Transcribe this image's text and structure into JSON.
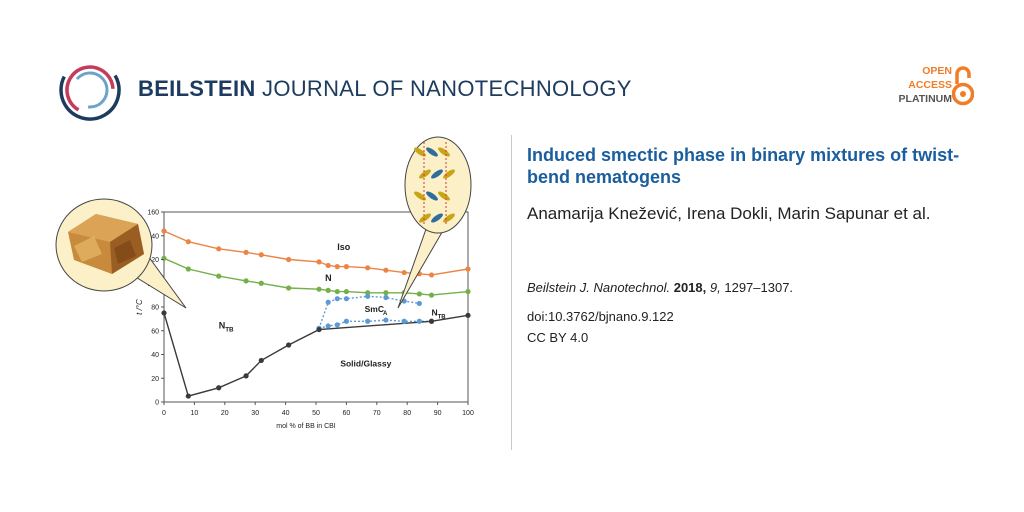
{
  "brand": {
    "bold": "BEILSTEIN",
    "light": "JOURNAL OF NANOTECHNOLOGY"
  },
  "open_access": {
    "line1": "OPEN",
    "line2": "ACCESS",
    "line3": "PLATINUM"
  },
  "article": {
    "title": "Induced smectic phase in binary mixtures of twist-bend nematogens",
    "authors": "Anamarija Knežević, Irena Dokli, Marin Sapunar et al.",
    "journal": "Beilstein J. Nanotechnol.",
    "year": "2018,",
    "volume": "9,",
    "pages": "1297–1307.",
    "doi": "doi:10.3762/bjnano.9.122",
    "license": "CC BY 4.0"
  },
  "colors": {
    "brand": "#1d3b5e",
    "title": "#1b5e9e",
    "accent": "#f07d27",
    "iso": "#ec8445",
    "n": "#74b04a",
    "smc": "#5b9bd5",
    "solid": "#3a3a3a"
  },
  "chart_data": {
    "type": "line",
    "xlabel": "mol % of BB in CBI",
    "ylabel": "t /°C",
    "xlim": [
      0,
      100
    ],
    "ylim": [
      0,
      160
    ],
    "xticks": [
      "0",
      "10",
      "20",
      "30",
      "40",
      "50",
      "60",
      "70",
      "80",
      "90",
      "100"
    ],
    "yticks": [
      "0",
      "20",
      "40",
      "60",
      "80",
      "100",
      "120",
      "140",
      "160"
    ],
    "series": [
      {
        "name": "Iso",
        "color": "#ec8445",
        "x": [
          0,
          8,
          18,
          27,
          32,
          41,
          51,
          54,
          57,
          60,
          67,
          73,
          79,
          84,
          88,
          100
        ],
        "y": [
          144,
          135,
          129,
          126,
          124,
          120,
          118,
          115,
          114,
          114,
          113,
          111,
          109,
          108,
          107,
          112
        ]
      },
      {
        "name": "N",
        "color": "#74b04a",
        "x": [
          0,
          8,
          18,
          27,
          32,
          41,
          51,
          54,
          57,
          60,
          67,
          73,
          79,
          84,
          88,
          100
        ],
        "y": [
          121,
          112,
          106,
          102,
          100,
          96,
          95,
          94,
          93,
          93,
          92,
          92,
          92,
          91,
          90,
          93
        ]
      },
      {
        "name": "SmCA",
        "color": "#5b9bd5",
        "x": [
          51,
          54,
          57,
          60,
          67,
          73,
          79,
          84
        ],
        "y": [
          62,
          84,
          87,
          87,
          89,
          88,
          85,
          83
        ]
      },
      {
        "name": "SmCA-lower",
        "color": "#5b9bd5",
        "x": [
          51,
          54,
          57,
          60,
          67,
          73,
          79,
          84,
          88
        ],
        "y": [
          62,
          64,
          65,
          68,
          68,
          69,
          68,
          68,
          68
        ]
      },
      {
        "name": "Solid/Glassy",
        "color": "#3a3a3a",
        "x": [
          0,
          8,
          18,
          27,
          32,
          41,
          51,
          88,
          100
        ],
        "y": [
          75,
          5,
          12,
          22,
          35,
          48,
          61,
          68,
          73
        ]
      }
    ],
    "annotations": [
      "Iso",
      "N",
      "N",
      "TB",
      "SmC",
      "A",
      "N",
      "TB",
      "Solid/Glassy"
    ]
  }
}
